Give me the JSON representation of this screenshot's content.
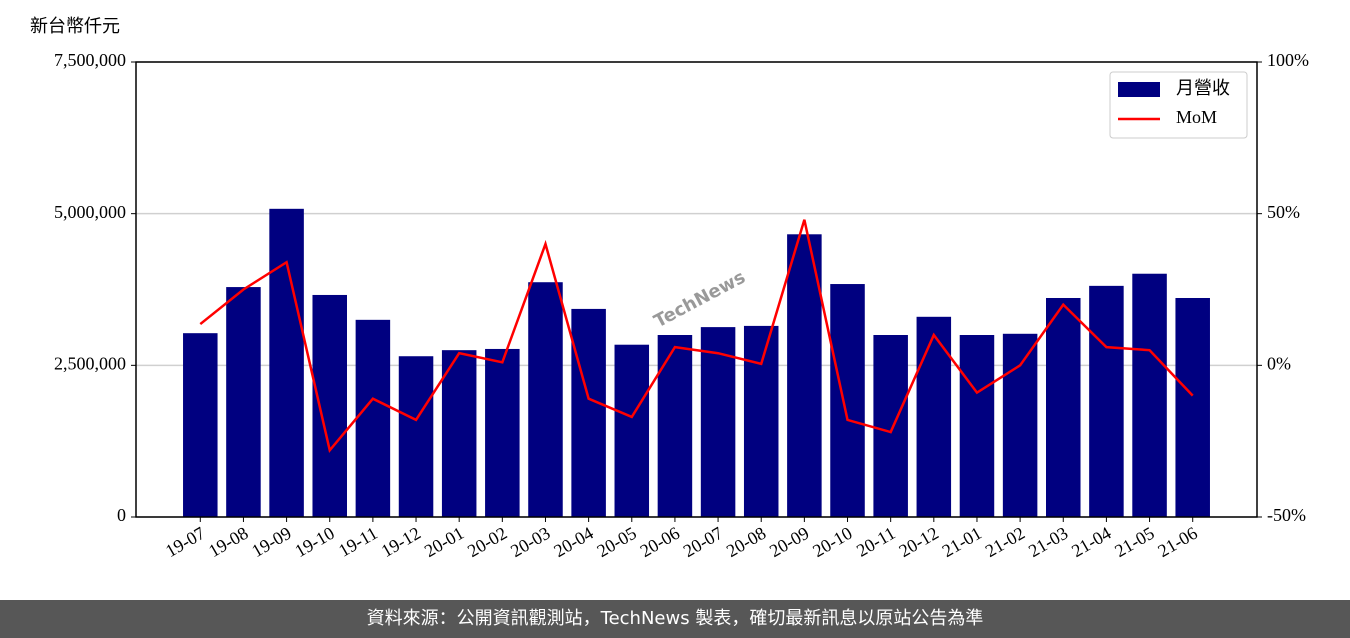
{
  "chart_data": {
    "type": "bar",
    "y_label": "新台幣仟元",
    "watermark": "TechNews",
    "footer": "資料來源：公開資訊觀測站，TechNews 製表，確切最新訊息以原站公告為準",
    "categories": [
      "19-07",
      "19-08",
      "19-09",
      "19-10",
      "19-11",
      "19-12",
      "20-01",
      "20-02",
      "20-03",
      "20-04",
      "20-05",
      "20-06",
      "20-07",
      "20-08",
      "20-09",
      "20-10",
      "20-11",
      "20-12",
      "21-01",
      "21-02",
      "21-03",
      "21-04",
      "21-05",
      "21-06"
    ],
    "series": [
      {
        "name": "月營收",
        "type": "bar",
        "color": "#000080",
        "values": [
          3030000,
          3790000,
          5080000,
          3660000,
          3250000,
          2650000,
          2750000,
          2770000,
          3870000,
          3430000,
          2840000,
          3000000,
          3130000,
          3150000,
          4660000,
          3840000,
          3000000,
          3300000,
          3000000,
          3020000,
          3610000,
          3810000,
          4010000,
          3610000
        ]
      },
      {
        "name": "MoM",
        "type": "line",
        "axis": "y2",
        "color": "#ff0000",
        "values": [
          13.6,
          25,
          34,
          -28,
          -11,
          -18,
          4,
          1,
          40,
          -11,
          -17,
          6,
          4,
          0.5,
          48,
          -18,
          -22,
          10,
          -9,
          0,
          20,
          6,
          5,
          -10
        ]
      }
    ],
    "ylim": [
      0,
      7500000
    ],
    "yticks": [
      0,
      {
        "value": 2500000,
        "label": "2,500,000"
      },
      {
        "value": 5000000,
        "label": "5,000,000"
      },
      {
        "value": 7500000,
        "label": "7,500,000"
      }
    ],
    "y2lim": [
      -50,
      100
    ],
    "y2ticks": [
      {
        "value": -50,
        "label": "-50%"
      },
      {
        "value": 0,
        "label": "0%"
      },
      {
        "value": 50,
        "label": "50%"
      },
      {
        "value": 100,
        "label": "100%"
      }
    ],
    "grid": true,
    "legend": "upper right"
  }
}
